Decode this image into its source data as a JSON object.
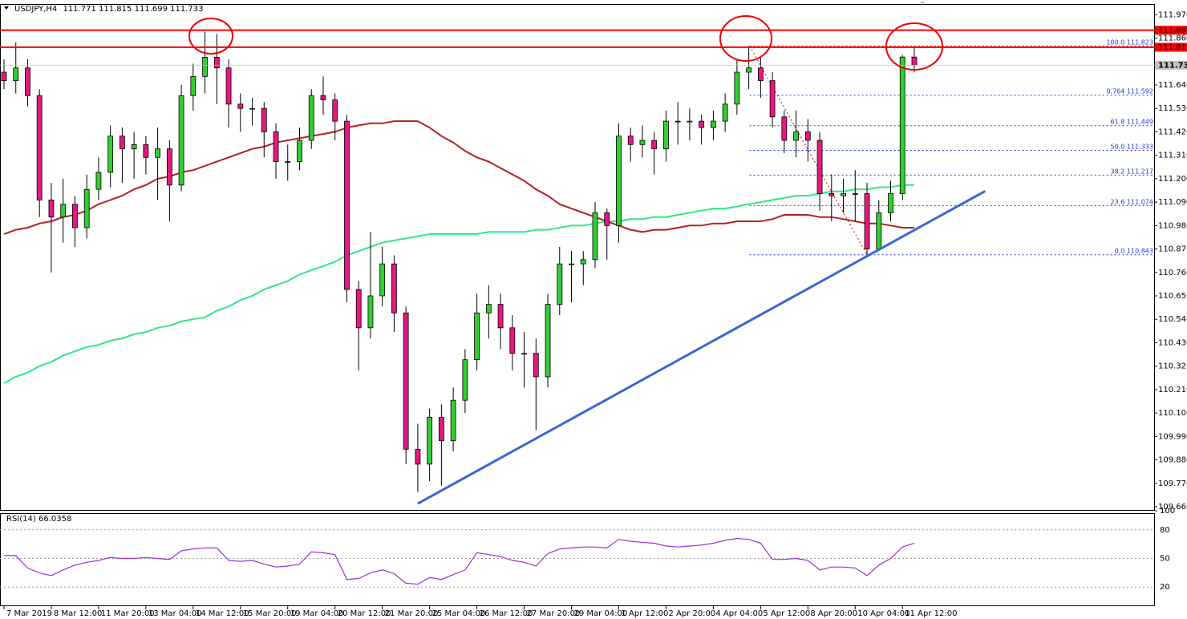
{
  "chart_data": {
    "type": "candlestick",
    "title": "USDJPY,H4",
    "categories": [
      "7 Mar 2019",
      null,
      null,
      null,
      "8 Mar 12:00",
      null,
      null,
      null,
      "11 Mar 20:00",
      null,
      null,
      null,
      "13 Mar 04:00",
      null,
      null,
      null,
      "14 Mar 12:00",
      null,
      null,
      null,
      "15 Mar 20:00",
      null,
      null,
      null,
      "19 Mar 04:00",
      null,
      null,
      null,
      "20 Mar 12:00",
      null,
      null,
      null,
      "21 Mar 20:00",
      null,
      null,
      null,
      "25 Mar 04:00",
      null,
      null,
      null,
      "26 Mar 12:00",
      null,
      null,
      null,
      "27 Mar 20:00",
      null,
      null,
      null,
      "29 Mar 04:00",
      null,
      null,
      null,
      "1 Apr 12:00",
      null,
      null,
      null,
      "2 Apr 20:00",
      null,
      null,
      null,
      "4 Apr 04:00",
      null,
      null,
      null,
      "5 Apr 12:00",
      null,
      null,
      null,
      "8 Apr 20:00",
      null,
      null,
      null,
      "10 Apr 04:00",
      null,
      null,
      null,
      "11 Apr 12:00",
      null
    ],
    "open": [
      111.7,
      111.66,
      111.72,
      111.59,
      111.1,
      111.02,
      111.08,
      110.97,
      111.15,
      111.23,
      111.4,
      111.34,
      111.36,
      111.3,
      111.34,
      111.17,
      111.59,
      111.68,
      111.77,
      111.72,
      111.55,
      111.53,
      111.53,
      111.42,
      111.28,
      111.28,
      111.38,
      111.59,
      111.57,
      111.47,
      110.68,
      110.5,
      110.65,
      110.8,
      110.57,
      109.93,
      109.86,
      110.08,
      109.97,
      110.16,
      110.35,
      110.57,
      110.61,
      110.5,
      110.38,
      110.38,
      110.27,
      110.61,
      110.8,
      110.8,
      110.82,
      111.04,
      110.98,
      111.4,
      111.36,
      111.38,
      111.34,
      111.47,
      111.47,
      111.47,
      111.44,
      111.47,
      111.55,
      111.7,
      111.72,
      111.66,
      111.49,
      111.38,
      111.42,
      111.38,
      111.13,
      111.12,
      111.13,
      111.13,
      110.87,
      111.04,
      111.13,
      111.771
    ],
    "high": [
      111.76,
      111.84,
      111.76,
      111.62,
      111.18,
      111.2,
      111.12,
      111.22,
      111.3,
      111.45,
      111.44,
      111.42,
      111.4,
      111.44,
      111.38,
      111.64,
      111.74,
      111.89,
      111.88,
      111.76,
      111.6,
      111.58,
      111.56,
      111.46,
      111.36,
      111.44,
      111.62,
      111.68,
      111.6,
      111.5,
      110.72,
      110.95,
      110.88,
      110.84,
      110.6,
      110.05,
      110.12,
      110.14,
      110.22,
      110.4,
      110.66,
      110.7,
      110.66,
      110.56,
      110.48,
      110.45,
      110.66,
      110.88,
      110.86,
      110.86,
      111.09,
      111.06,
      111.46,
      111.44,
      111.45,
      111.42,
      111.52,
      111.56,
      111.53,
      111.5,
      111.52,
      111.6,
      111.76,
      111.823,
      111.77,
      111.7,
      111.52,
      111.52,
      111.48,
      111.42,
      111.22,
      111.2,
      111.24,
      111.18,
      111.1,
      111.19,
      111.78,
      111.815
    ],
    "low": [
      111.62,
      111.6,
      111.54,
      111.02,
      110.76,
      110.9,
      110.88,
      110.92,
      111.1,
      111.16,
      111.18,
      111.2,
      111.22,
      111.1,
      111.0,
      111.14,
      111.52,
      111.6,
      111.55,
      111.44,
      111.42,
      111.45,
      111.3,
      111.2,
      111.19,
      111.24,
      111.34,
      111.5,
      111.38,
      110.62,
      110.3,
      110.45,
      110.6,
      110.48,
      109.86,
      109.73,
      109.78,
      109.76,
      109.92,
      110.1,
      110.3,
      110.45,
      110.4,
      110.3,
      110.22,
      110.02,
      110.22,
      110.56,
      110.62,
      110.7,
      110.78,
      110.82,
      110.9,
      111.28,
      111.3,
      111.22,
      111.28,
      111.36,
      111.38,
      111.36,
      111.38,
      111.42,
      111.5,
      111.62,
      111.58,
      111.44,
      111.32,
      111.3,
      111.28,
      111.05,
      111.0,
      111.04,
      111.0,
      110.843,
      110.86,
      111.0,
      111.1,
      111.699
    ],
    "close": [
      111.66,
      111.72,
      111.59,
      111.1,
      111.02,
      111.08,
      110.97,
      111.15,
      111.23,
      111.4,
      111.34,
      111.36,
      111.3,
      111.34,
      111.17,
      111.59,
      111.68,
      111.77,
      111.72,
      111.55,
      111.53,
      111.53,
      111.42,
      111.28,
      111.28,
      111.38,
      111.59,
      111.57,
      111.47,
      110.68,
      110.5,
      110.65,
      110.8,
      110.57,
      109.93,
      109.86,
      110.08,
      109.97,
      110.16,
      110.35,
      110.57,
      110.61,
      110.5,
      110.38,
      110.38,
      110.27,
      110.61,
      110.8,
      110.8,
      110.82,
      111.04,
      110.98,
      111.4,
      111.36,
      111.38,
      111.34,
      111.47,
      111.47,
      111.47,
      111.44,
      111.47,
      111.55,
      111.7,
      111.72,
      111.66,
      111.49,
      111.38,
      111.42,
      111.38,
      111.13,
      111.12,
      111.13,
      111.13,
      110.87,
      111.04,
      111.13,
      111.771,
      111.733
    ],
    "up_color": "#32cd32",
    "down_color": "#e8177f",
    "series": [
      {
        "color": "#b22222",
        "values": [
          110.94,
          110.96,
          110.97,
          110.99,
          111.0,
          111.02,
          111.03,
          111.05,
          111.08,
          111.1,
          111.12,
          111.15,
          111.17,
          111.2,
          111.21,
          111.23,
          111.24,
          111.26,
          111.28,
          111.3,
          111.32,
          111.34,
          111.35,
          111.37,
          111.38,
          111.39,
          111.4,
          111.41,
          111.42,
          111.44,
          111.45,
          111.46,
          111.46,
          111.47,
          111.47,
          111.47,
          111.44,
          111.4,
          111.37,
          111.33,
          111.3,
          111.28,
          111.25,
          111.22,
          111.19,
          111.15,
          111.12,
          111.08,
          111.06,
          111.04,
          111.02,
          111.0,
          110.98,
          110.96,
          110.95,
          110.96,
          110.96,
          110.97,
          110.98,
          110.98,
          110.99,
          110.99,
          111.0,
          111.0,
          111.0,
          111.01,
          111.03,
          111.03,
          111.03,
          111.02,
          111.02,
          111.01,
          111.0,
          110.99,
          110.99,
          110.98,
          110.97,
          110.97
        ]
      },
      {
        "color": "#2ee88a",
        "values": [
          110.24,
          110.27,
          110.29,
          110.32,
          110.34,
          110.37,
          110.39,
          110.41,
          110.42,
          110.44,
          110.45,
          110.47,
          110.48,
          110.5,
          110.51,
          110.53,
          110.54,
          110.55,
          110.58,
          110.6,
          110.63,
          110.65,
          110.68,
          110.7,
          110.72,
          110.75,
          110.77,
          110.79,
          110.81,
          110.84,
          110.86,
          110.88,
          110.9,
          110.91,
          110.92,
          110.93,
          110.94,
          110.94,
          110.94,
          110.94,
          110.94,
          110.95,
          110.95,
          110.95,
          110.95,
          110.96,
          110.96,
          110.97,
          110.98,
          110.98,
          110.99,
          111.0,
          111.0,
          111.01,
          111.01,
          111.02,
          111.02,
          111.03,
          111.04,
          111.05,
          111.06,
          111.06,
          111.07,
          111.08,
          111.09,
          111.1,
          111.11,
          111.12,
          111.12,
          111.13,
          111.14,
          111.14,
          111.15,
          111.15,
          111.16,
          111.16,
          111.17,
          111.17
        ]
      }
    ],
    "ylim": [
      109.645,
      112.02
    ],
    "yticks": [
      {
        "value": 111.97,
        "label": "111.970"
      },
      {
        "value": 111.86,
        "label": "111.860"
      },
      {
        "value": 111.64,
        "label": "111.640"
      },
      {
        "value": 111.53,
        "label": "111.530"
      },
      {
        "value": 111.42,
        "label": "111.420"
      },
      {
        "value": 111.31,
        "label": "111.310"
      },
      {
        "value": 111.2,
        "label": "111.200"
      },
      {
        "value": 111.09,
        "label": "111.090"
      },
      {
        "value": 110.98,
        "label": "110.980"
      },
      {
        "value": 110.87,
        "label": "110.870"
      },
      {
        "value": 110.76,
        "label": "110.760"
      },
      {
        "value": 110.65,
        "label": "110.650"
      },
      {
        "value": 110.54,
        "label": "110.540"
      },
      {
        "value": 110.43,
        "label": "110.430"
      },
      {
        "value": 110.32,
        "label": "110.320"
      },
      {
        "value": 110.21,
        "label": "110.210"
      },
      {
        "value": 110.1,
        "label": "110.100"
      },
      {
        "value": 109.99,
        "label": "109.990"
      },
      {
        "value": 109.88,
        "label": "109.880"
      },
      {
        "value": 109.77,
        "label": "109.770"
      },
      {
        "value": 109.66,
        "label": "109.660"
      }
    ],
    "hlines": [
      {
        "price": 111.897,
        "color": "#ff0000"
      },
      {
        "price": 111.817,
        "color": "#ff0000"
      }
    ],
    "fibonacci": [
      {
        "level": "100.0",
        "price": 111.823
      },
      {
        "level": "0.764",
        "price": 111.592
      },
      {
        "level": "61.8",
        "price": 111.449
      },
      {
        "level": "50.0",
        "price": 111.333
      },
      {
        "level": "38.2",
        "price": 111.217
      },
      {
        "level": "23.6",
        "price": 111.074
      },
      {
        "level": "0.0",
        "price": 110.843
      }
    ],
    "trendline": {
      "x": [
        35,
        83
      ],
      "y": [
        109.675,
        111.142
      ],
      "color": "#3a66d4"
    },
    "rsi": {
      "title": "RSI(14)",
      "color": "#9b30d9",
      "ylim": [
        0,
        100
      ],
      "yticks": [
        100,
        80,
        50,
        20
      ],
      "values": [
        53,
        53,
        40,
        35,
        32,
        38,
        43,
        46,
        48,
        51,
        50,
        50,
        51,
        50,
        49,
        58,
        60,
        61,
        61,
        48,
        47,
        48,
        44,
        41,
        42,
        44,
        57,
        56,
        54,
        28,
        29,
        35,
        38,
        34,
        24,
        23,
        30,
        28,
        33,
        38,
        56,
        54,
        52,
        48,
        46,
        42,
        55,
        60,
        61,
        62,
        62,
        61,
        70,
        68,
        67,
        66,
        63,
        62,
        63,
        64,
        66,
        69,
        71,
        70,
        66,
        49,
        49,
        50,
        48,
        38,
        41,
        41,
        40,
        32,
        43,
        50,
        62,
        66.0358
      ]
    }
  }
}
